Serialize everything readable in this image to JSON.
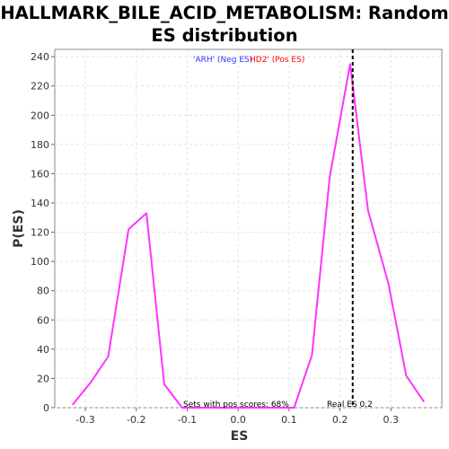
{
  "chart_data": {
    "type": "line",
    "title_line1": "HALLMARK_BILE_ACID_METABOLISM: Random",
    "title_line2": "ES distribution",
    "xlabel": "ES",
    "ylabel": "P(ES)",
    "xlim": [
      -0.36,
      0.4
    ],
    "ylim": [
      0,
      245
    ],
    "xticks": [
      -0.3,
      -0.2,
      -0.1,
      0.0,
      0.1,
      0.2,
      0.3
    ],
    "xtick_labels": [
      "-0.3",
      "-0.2",
      "-0.1",
      "0.0",
      "0.1",
      "0.2",
      "0.3"
    ],
    "yticks": [
      0,
      20,
      40,
      60,
      80,
      100,
      120,
      140,
      160,
      180,
      200,
      220,
      240
    ],
    "ytick_labels": [
      "0",
      "20",
      "40",
      "60",
      "80",
      "100",
      "120",
      "140",
      "160",
      "180",
      "200",
      "220",
      "240"
    ],
    "grid": true,
    "series": [
      {
        "color": "#ff33ff",
        "x": [
          -0.325,
          -0.29,
          -0.255,
          -0.215,
          -0.18,
          -0.145,
          -0.11,
          -0.075,
          -0.04,
          0.0,
          0.035,
          0.07,
          0.11,
          0.145,
          0.18,
          0.22,
          0.255,
          0.295,
          0.33,
          0.365
        ],
        "y": [
          2,
          17,
          35,
          122,
          133,
          16,
          0,
          0,
          0,
          0,
          0,
          0,
          0,
          36,
          158,
          235,
          135,
          85,
          22,
          4
        ]
      }
    ],
    "real_es": 0.225,
    "legend": {
      "neg": "'ARH' (Neg ES)",
      "pos": "HD2' (Pos ES)",
      "neg_color": "#3333ff",
      "pos_color": "#ff0000"
    },
    "annotations": {
      "pos_scores": "Sets with pos scores: 68%",
      "real_es": "Real ES 0.2"
    }
  }
}
